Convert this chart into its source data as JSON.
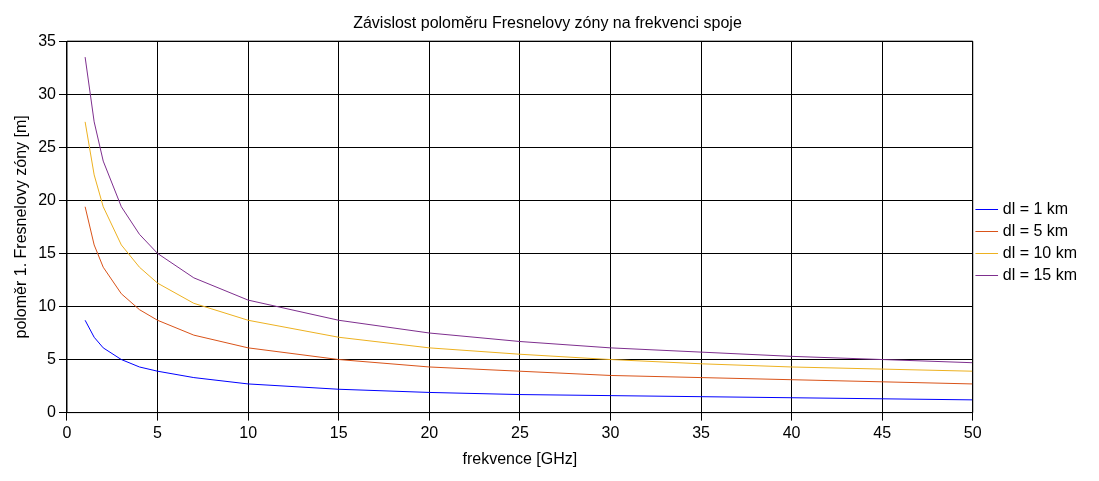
{
  "chart_data": {
    "type": "line",
    "title": "Závislost poloměru Fresnelovy zóny na frekvenci spoje",
    "xlabel": "frekvence [GHz]",
    "ylabel": "poloměr 1. Fresnelovy zóny [m]",
    "x": [
      1,
      1.5,
      2,
      3,
      4,
      5,
      7,
      10,
      15,
      20,
      25,
      30,
      35,
      40,
      45,
      50
    ],
    "series": [
      {
        "name": "dl = 1 km",
        "color": "#0000ff",
        "values": [
          8.7,
          7.1,
          6.1,
          5.0,
          4.3,
          3.9,
          3.3,
          2.7,
          2.2,
          1.9,
          1.7,
          1.6,
          1.5,
          1.4,
          1.3,
          1.2
        ]
      },
      {
        "name": "dl = 5 km",
        "color": "#d95319",
        "values": [
          19.4,
          15.8,
          13.7,
          11.2,
          9.7,
          8.7,
          7.3,
          6.1,
          5.0,
          4.3,
          3.9,
          3.5,
          3.3,
          3.1,
          2.9,
          2.7
        ]
      },
      {
        "name": "dl = 10 km",
        "color": "#edb120",
        "values": [
          27.4,
          22.4,
          19.4,
          15.8,
          13.7,
          12.2,
          10.3,
          8.7,
          7.1,
          6.1,
          5.5,
          5.0,
          4.6,
          4.3,
          4.1,
          3.9
        ]
      },
      {
        "name": "dl = 15 km",
        "color": "#7e2f8e",
        "values": [
          33.5,
          27.4,
          23.7,
          19.4,
          16.8,
          15.0,
          12.7,
          10.6,
          8.7,
          7.5,
          6.7,
          6.1,
          5.7,
          5.3,
          5.0,
          4.7
        ]
      }
    ],
    "xlim": [
      0,
      50
    ],
    "xticks": [
      0,
      5,
      10,
      15,
      20,
      25,
      30,
      35,
      40,
      45,
      50
    ],
    "ylim": [
      0,
      35
    ],
    "yticks": [
      0,
      5,
      10,
      15,
      20,
      25,
      30,
      35
    ],
    "grid": true,
    "legend": "right",
    "marker": "none",
    "line_style": "solid"
  }
}
